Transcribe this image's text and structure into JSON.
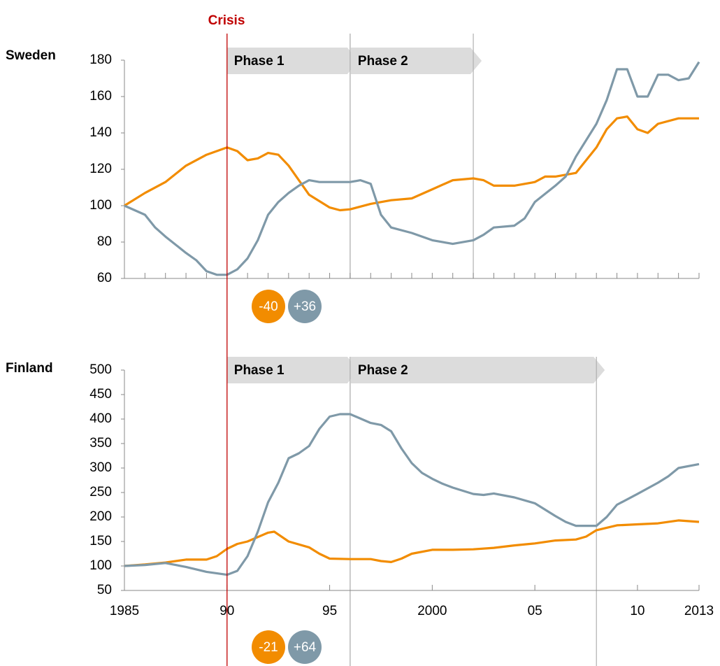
{
  "crisis": {
    "label": "Crisis",
    "year": 1990,
    "color": "#c00000"
  },
  "chart_data": [
    {
      "type": "line",
      "title": "Sweden",
      "xlim": [
        1985,
        2013
      ],
      "xticks": [
        1985,
        1986,
        1987,
        1988,
        1989,
        1990,
        1991,
        1992,
        1993,
        1994,
        1995,
        1996,
        1997,
        1998,
        1999,
        2000,
        2001,
        2002,
        2003,
        2004,
        2005,
        2006,
        2007,
        2008,
        2009,
        2010,
        2011,
        2012,
        2013
      ],
      "xtick_labels": false,
      "ylim": [
        60,
        180
      ],
      "yticks": [
        60,
        80,
        100,
        120,
        140,
        160,
        180
      ],
      "phases": [
        {
          "label": "Phase 1",
          "start": 1990,
          "end": 1996
        },
        {
          "label": "Phase 2",
          "start": 1996,
          "end": 2002
        }
      ],
      "badges": [
        {
          "label": "-40",
          "color": "#f28c00"
        },
        {
          "label": "+36",
          "color": "#7f99a8"
        }
      ],
      "series": [
        {
          "color": "#f28c00",
          "x": [
            1985,
            1986,
            1987,
            1988,
            1989,
            1990,
            1990.5,
            1991,
            1991.5,
            1992,
            1992.5,
            1993,
            1994,
            1995,
            1995.5,
            1996,
            1997,
            1998,
            1999,
            2000,
            2001,
            2002,
            2002.5,
            2003,
            2004,
            2005,
            2005.5,
            2006,
            2007,
            2008,
            2008.5,
            2009,
            2009.5,
            2010,
            2010.5,
            2011,
            2012,
            2013
          ],
          "values": [
            100,
            107,
            113,
            122,
            128,
            132,
            130,
            125,
            126,
            129,
            128,
            122,
            106,
            99,
            97.5,
            98,
            101,
            103,
            104,
            109,
            114,
            115,
            114,
            111,
            111,
            113,
            116,
            116,
            118,
            132,
            142,
            148,
            149,
            142,
            140,
            145,
            148,
            148
          ]
        },
        {
          "color": "#7f99a8",
          "x": [
            1985,
            1986,
            1986.5,
            1987,
            1988,
            1988.5,
            1989,
            1989.5,
            1990,
            1990.5,
            1991,
            1991.5,
            1992,
            1992.5,
            1993,
            1993.5,
            1994,
            1994.5,
            1995,
            1996,
            1996.5,
            1997,
            1997.5,
            1998,
            1999,
            2000,
            2001,
            2002,
            2002.5,
            2003,
            2004,
            2004.5,
            2005,
            2006,
            2006.5,
            2007,
            2008,
            2008.5,
            2009,
            2009.5,
            2010,
            2010.5,
            2011,
            2011.5,
            2012,
            2012.5,
            2013
          ],
          "values": [
            100,
            95,
            88,
            83,
            74,
            70,
            64,
            62,
            62,
            65,
            71,
            81,
            95,
            102,
            107,
            111,
            114,
            113,
            113,
            113,
            114,
            112,
            95,
            88,
            85,
            81,
            79,
            81,
            84,
            88,
            89,
            93,
            102,
            111,
            116,
            127,
            145,
            158,
            175,
            175,
            160,
            160,
            172,
            172,
            169,
            170,
            179
          ]
        }
      ]
    },
    {
      "type": "line",
      "title": "Finland",
      "xlim": [
        1985,
        2013
      ],
      "xticks": [
        {
          "value": 1985,
          "label": "1985"
        },
        {
          "value": 1990,
          "label": "90"
        },
        {
          "value": 1995,
          "label": "95"
        },
        2000,
        {
          "value": 2005,
          "label": "05"
        },
        {
          "value": 2010,
          "label": "10"
        },
        2013
      ],
      "xtick_labels": true,
      "ylim": [
        50,
        500
      ],
      "yticks": [
        50,
        100,
        150,
        200,
        250,
        300,
        350,
        400,
        450,
        500
      ],
      "phases": [
        {
          "label": "Phase 1",
          "start": 1990,
          "end": 1996
        },
        {
          "label": "Phase 2",
          "start": 1996,
          "end": 2008
        }
      ],
      "badges": [
        {
          "label": "-21",
          "color": "#f28c00"
        },
        {
          "label": "+64",
          "color": "#7f99a8"
        }
      ],
      "series": [
        {
          "color": "#f28c00",
          "x": [
            1985,
            1986,
            1987,
            1988,
            1989,
            1989.5,
            1990,
            1990.5,
            1991,
            1992,
            1992.3,
            1993,
            1994,
            1994.5,
            1995,
            1996,
            1997,
            1997.5,
            1998,
            1998.5,
            1999,
            2000,
            2001,
            2002,
            2003,
            2004,
            2005,
            2006,
            2007,
            2007.5,
            2008,
            2009,
            2010,
            2011,
            2012,
            2013
          ],
          "values": [
            100,
            103,
            107,
            113,
            113,
            120,
            135,
            145,
            150,
            168,
            170,
            150,
            138,
            125,
            115,
            114,
            114,
            110,
            108,
            115,
            125,
            133,
            133,
            134,
            137,
            142,
            146,
            152,
            154,
            160,
            173,
            183,
            185,
            187,
            193,
            190
          ]
        },
        {
          "color": "#7f99a8",
          "x": [
            1985,
            1986,
            1987,
            1988,
            1989,
            1990,
            1990.5,
            1991,
            1991.5,
            1992,
            1992.5,
            1993,
            1993.5,
            1994,
            1994.5,
            1995,
            1995.5,
            1996,
            1997,
            1997.5,
            1998,
            1998.5,
            1999,
            1999.5,
            2000,
            2000.5,
            2001,
            2002,
            2002.5,
            2003,
            2004,
            2005,
            2006,
            2006.5,
            2007,
            2008,
            2008.5,
            2009,
            2010,
            2011,
            2011.5,
            2012,
            2013
          ],
          "values": [
            100,
            102,
            106,
            98,
            88,
            82,
            90,
            120,
            170,
            230,
            270,
            320,
            330,
            345,
            380,
            405,
            410,
            410,
            392,
            388,
            375,
            340,
            310,
            290,
            278,
            268,
            260,
            247,
            245,
            248,
            240,
            228,
            202,
            190,
            182,
            182,
            200,
            225,
            247,
            270,
            283,
            300,
            308
          ]
        }
      ]
    }
  ]
}
